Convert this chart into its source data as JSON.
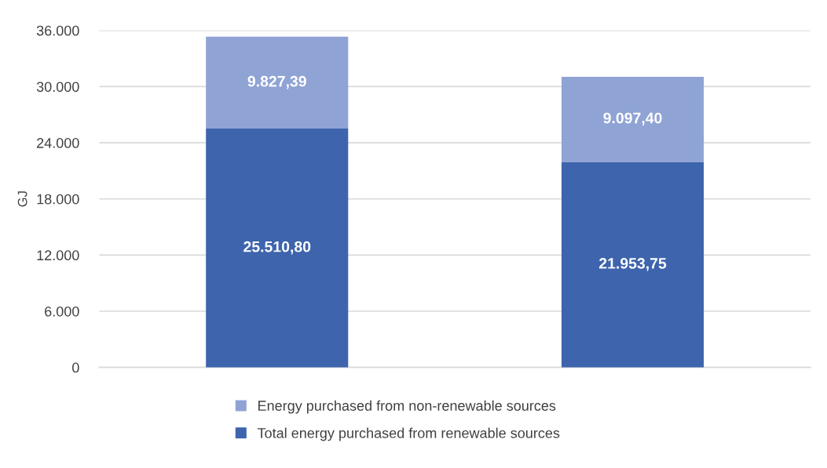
{
  "chart_data": {
    "type": "bar",
    "stacked": true,
    "ylabel": "GJ",
    "categories": [
      null,
      null
    ],
    "series": [
      {
        "name": "Total energy purchased from renewable sources",
        "color": "#3d64ad",
        "values": [
          25510.8,
          21953.75
        ],
        "value_labels": [
          "25.510,80",
          "21.953,75"
        ]
      },
      {
        "name": "Energy purchased from non-renewable sources",
        "color": "#8fa3d5",
        "values": [
          9827.39,
          9097.4
        ],
        "value_labels": [
          "9.827,39",
          "9.097,40"
        ]
      }
    ],
    "ylim": [
      0,
      36000
    ],
    "yticks": [
      0,
      {
        "value": 6000,
        "label": "6.000"
      },
      {
        "value": 12000,
        "label": "12.000"
      },
      {
        "value": 18000,
        "label": "18.000"
      },
      {
        "value": 24000,
        "label": "24.000"
      },
      {
        "value": 30000,
        "label": "30.000"
      },
      {
        "value": 36000,
        "label": "36.000"
      }
    ],
    "grid": "y",
    "legend": "bottom"
  }
}
